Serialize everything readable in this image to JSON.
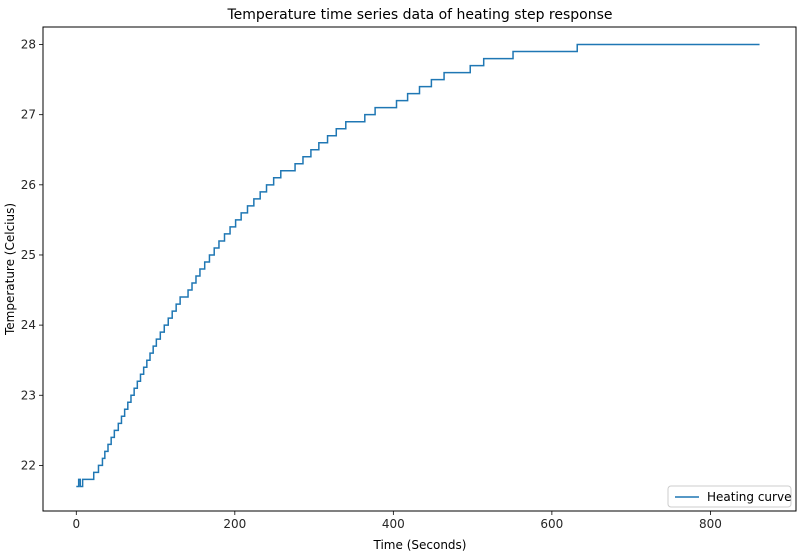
{
  "chart_data": {
    "type": "line",
    "title": "Temperature time series data of heating step response",
    "xlabel": "Time (Seconds)",
    "ylabel": "Temperature (Celcius)",
    "xlim": [
      -42,
      908
    ],
    "ylim": [
      21.35,
      28.25
    ],
    "xticks": [
      0,
      200,
      400,
      600,
      800
    ],
    "yticks": [
      22,
      23,
      24,
      25,
      26,
      27,
      28
    ],
    "grid": false,
    "legend_position": "lower-right",
    "series": [
      {
        "name": "Heating curve",
        "color": "#1f77b4",
        "x": [
          0,
          3,
          5,
          8,
          15,
          22,
          28,
          33,
          36,
          40,
          44,
          48,
          53,
          57,
          61,
          65,
          69,
          73,
          77,
          81,
          85,
          89,
          93,
          97,
          101,
          106,
          111,
          116,
          121,
          126,
          131,
          136,
          141,
          146,
          151,
          156,
          162,
          168,
          174,
          180,
          187,
          194,
          201,
          208,
          216,
          224,
          232,
          240,
          249,
          258,
          267,
          276,
          286,
          296,
          306,
          317,
          328,
          340,
          352,
          364,
          377,
          390,
          404,
          418,
          433,
          448,
          464,
          480,
          497,
          514,
          532,
          551,
          570,
          590,
          611,
          632,
          655,
          678,
          702,
          727,
          753,
          780,
          808,
          836,
          850,
          862
        ],
        "y": [
          21.7,
          21.8,
          21.7,
          21.8,
          21.8,
          21.9,
          22.0,
          22.1,
          22.2,
          22.3,
          22.4,
          22.5,
          22.6,
          22.7,
          22.8,
          22.9,
          23.0,
          23.1,
          23.2,
          23.3,
          23.4,
          23.5,
          23.6,
          23.7,
          23.8,
          23.9,
          24.0,
          24.1,
          24.2,
          24.3,
          24.4,
          24.4,
          24.5,
          24.6,
          24.7,
          24.8,
          24.9,
          25.0,
          25.1,
          25.2,
          25.3,
          25.4,
          25.5,
          25.6,
          25.7,
          25.8,
          25.9,
          26.0,
          26.1,
          26.2,
          26.2,
          26.3,
          26.4,
          26.5,
          26.6,
          26.7,
          26.8,
          26.9,
          26.9,
          27.0,
          27.1,
          27.1,
          27.2,
          27.3,
          27.4,
          27.5,
          27.6,
          27.6,
          27.7,
          27.8,
          27.8,
          27.9,
          27.9,
          27.9,
          27.9,
          28.0,
          28.0,
          28.0,
          28.0,
          28.0,
          28.0,
          28.0,
          28.0,
          28.0,
          28.0,
          28.0
        ]
      }
    ]
  }
}
